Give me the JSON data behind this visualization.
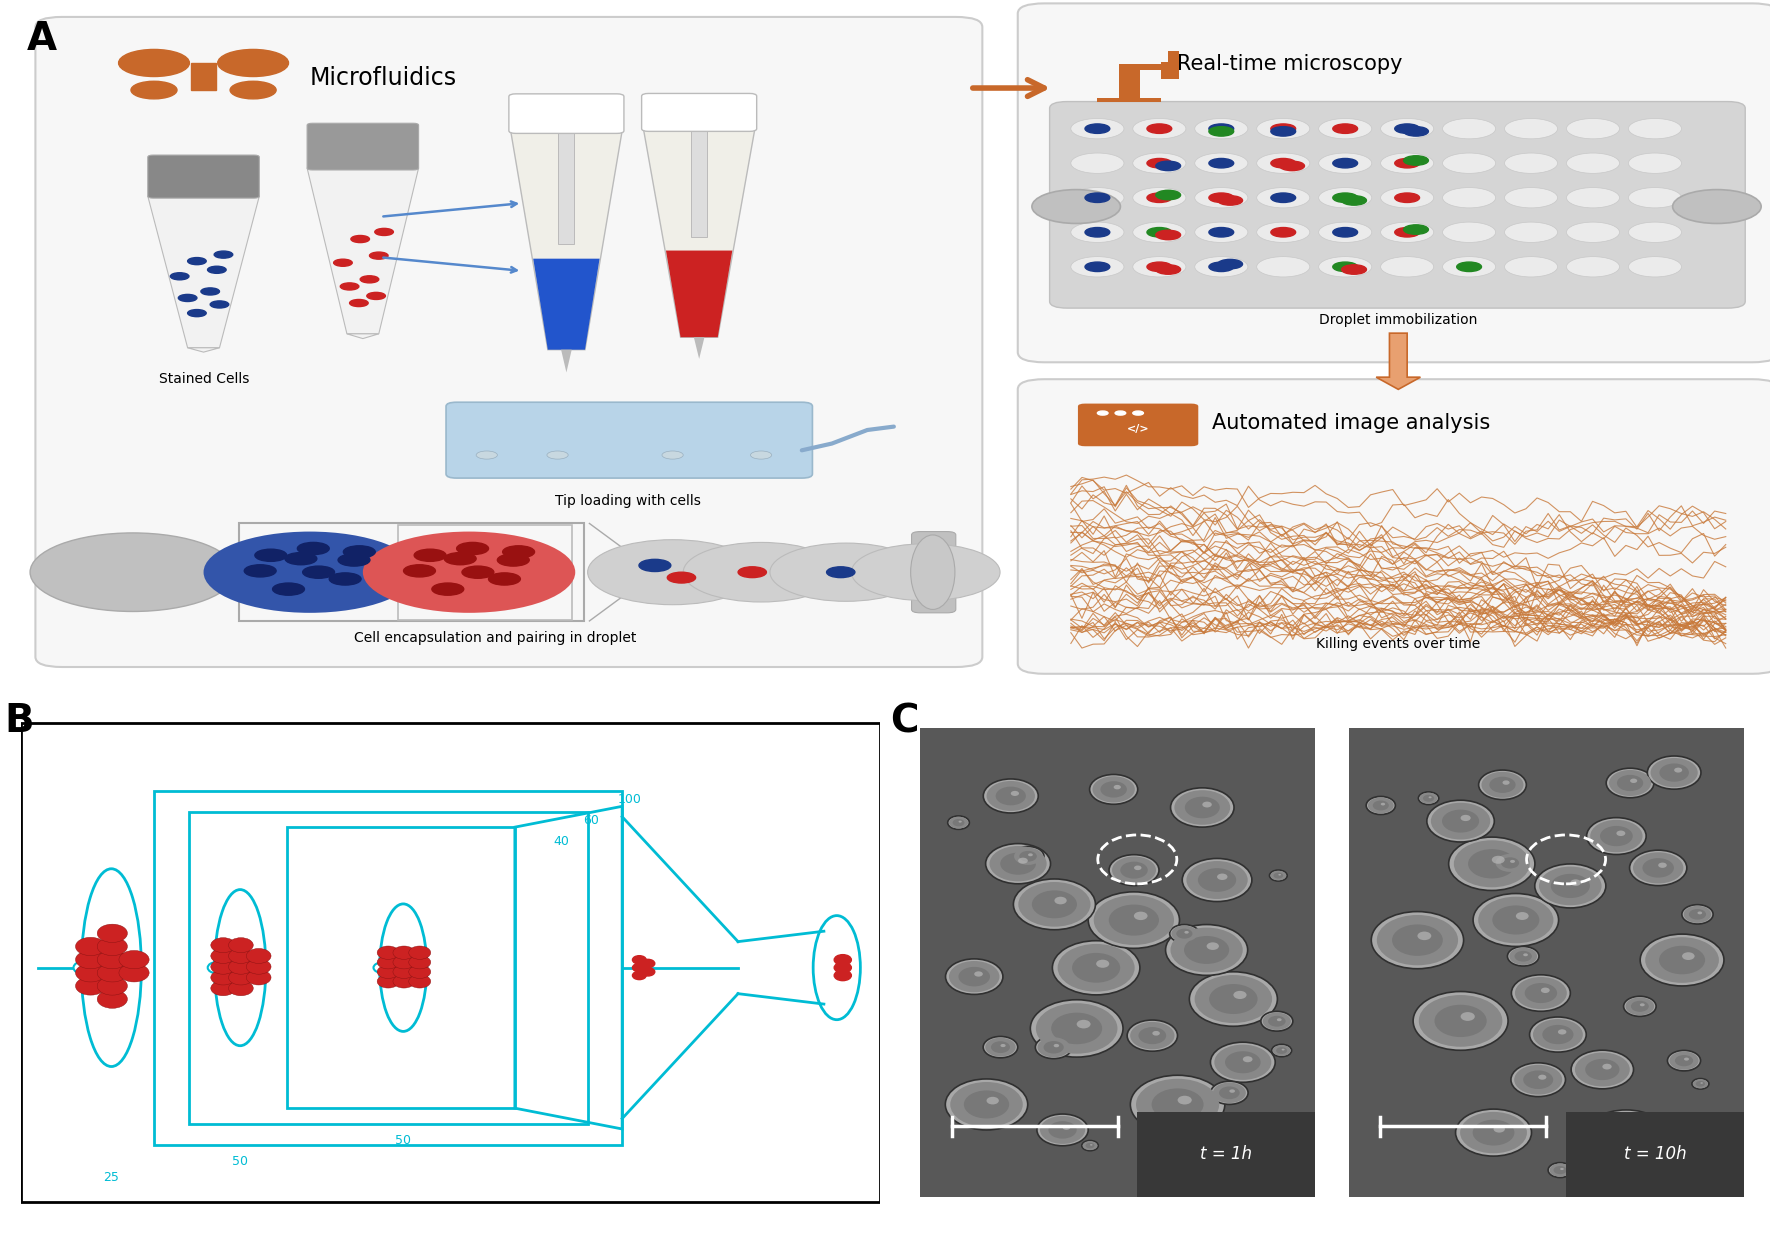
{
  "fig_width": 17.7,
  "fig_height": 12.54,
  "bg_color": "#ffffff",
  "orange_color": "#C8682A",
  "orange_light": "#E8A070",
  "cyan_color": "#00BCD4",
  "blue_cell": "#1a3a8a",
  "red_cell": "#cc2222",
  "green_cell": "#228822",
  "panel_A_label": "A",
  "panel_B_label": "B",
  "panel_C_label": "C",
  "title_microfluidics": "Microfluidics",
  "title_microscopy": "Real-time microscopy",
  "title_image_analysis": "Automated image analysis",
  "caption_stained": "Stained Cells",
  "caption_tip": "Tip loading with cells",
  "caption_droplet_immob": "Droplet immobilization",
  "caption_killing": "Killing events over time",
  "caption_encapsulation": "Cell encapsulation and pairing in droplet"
}
